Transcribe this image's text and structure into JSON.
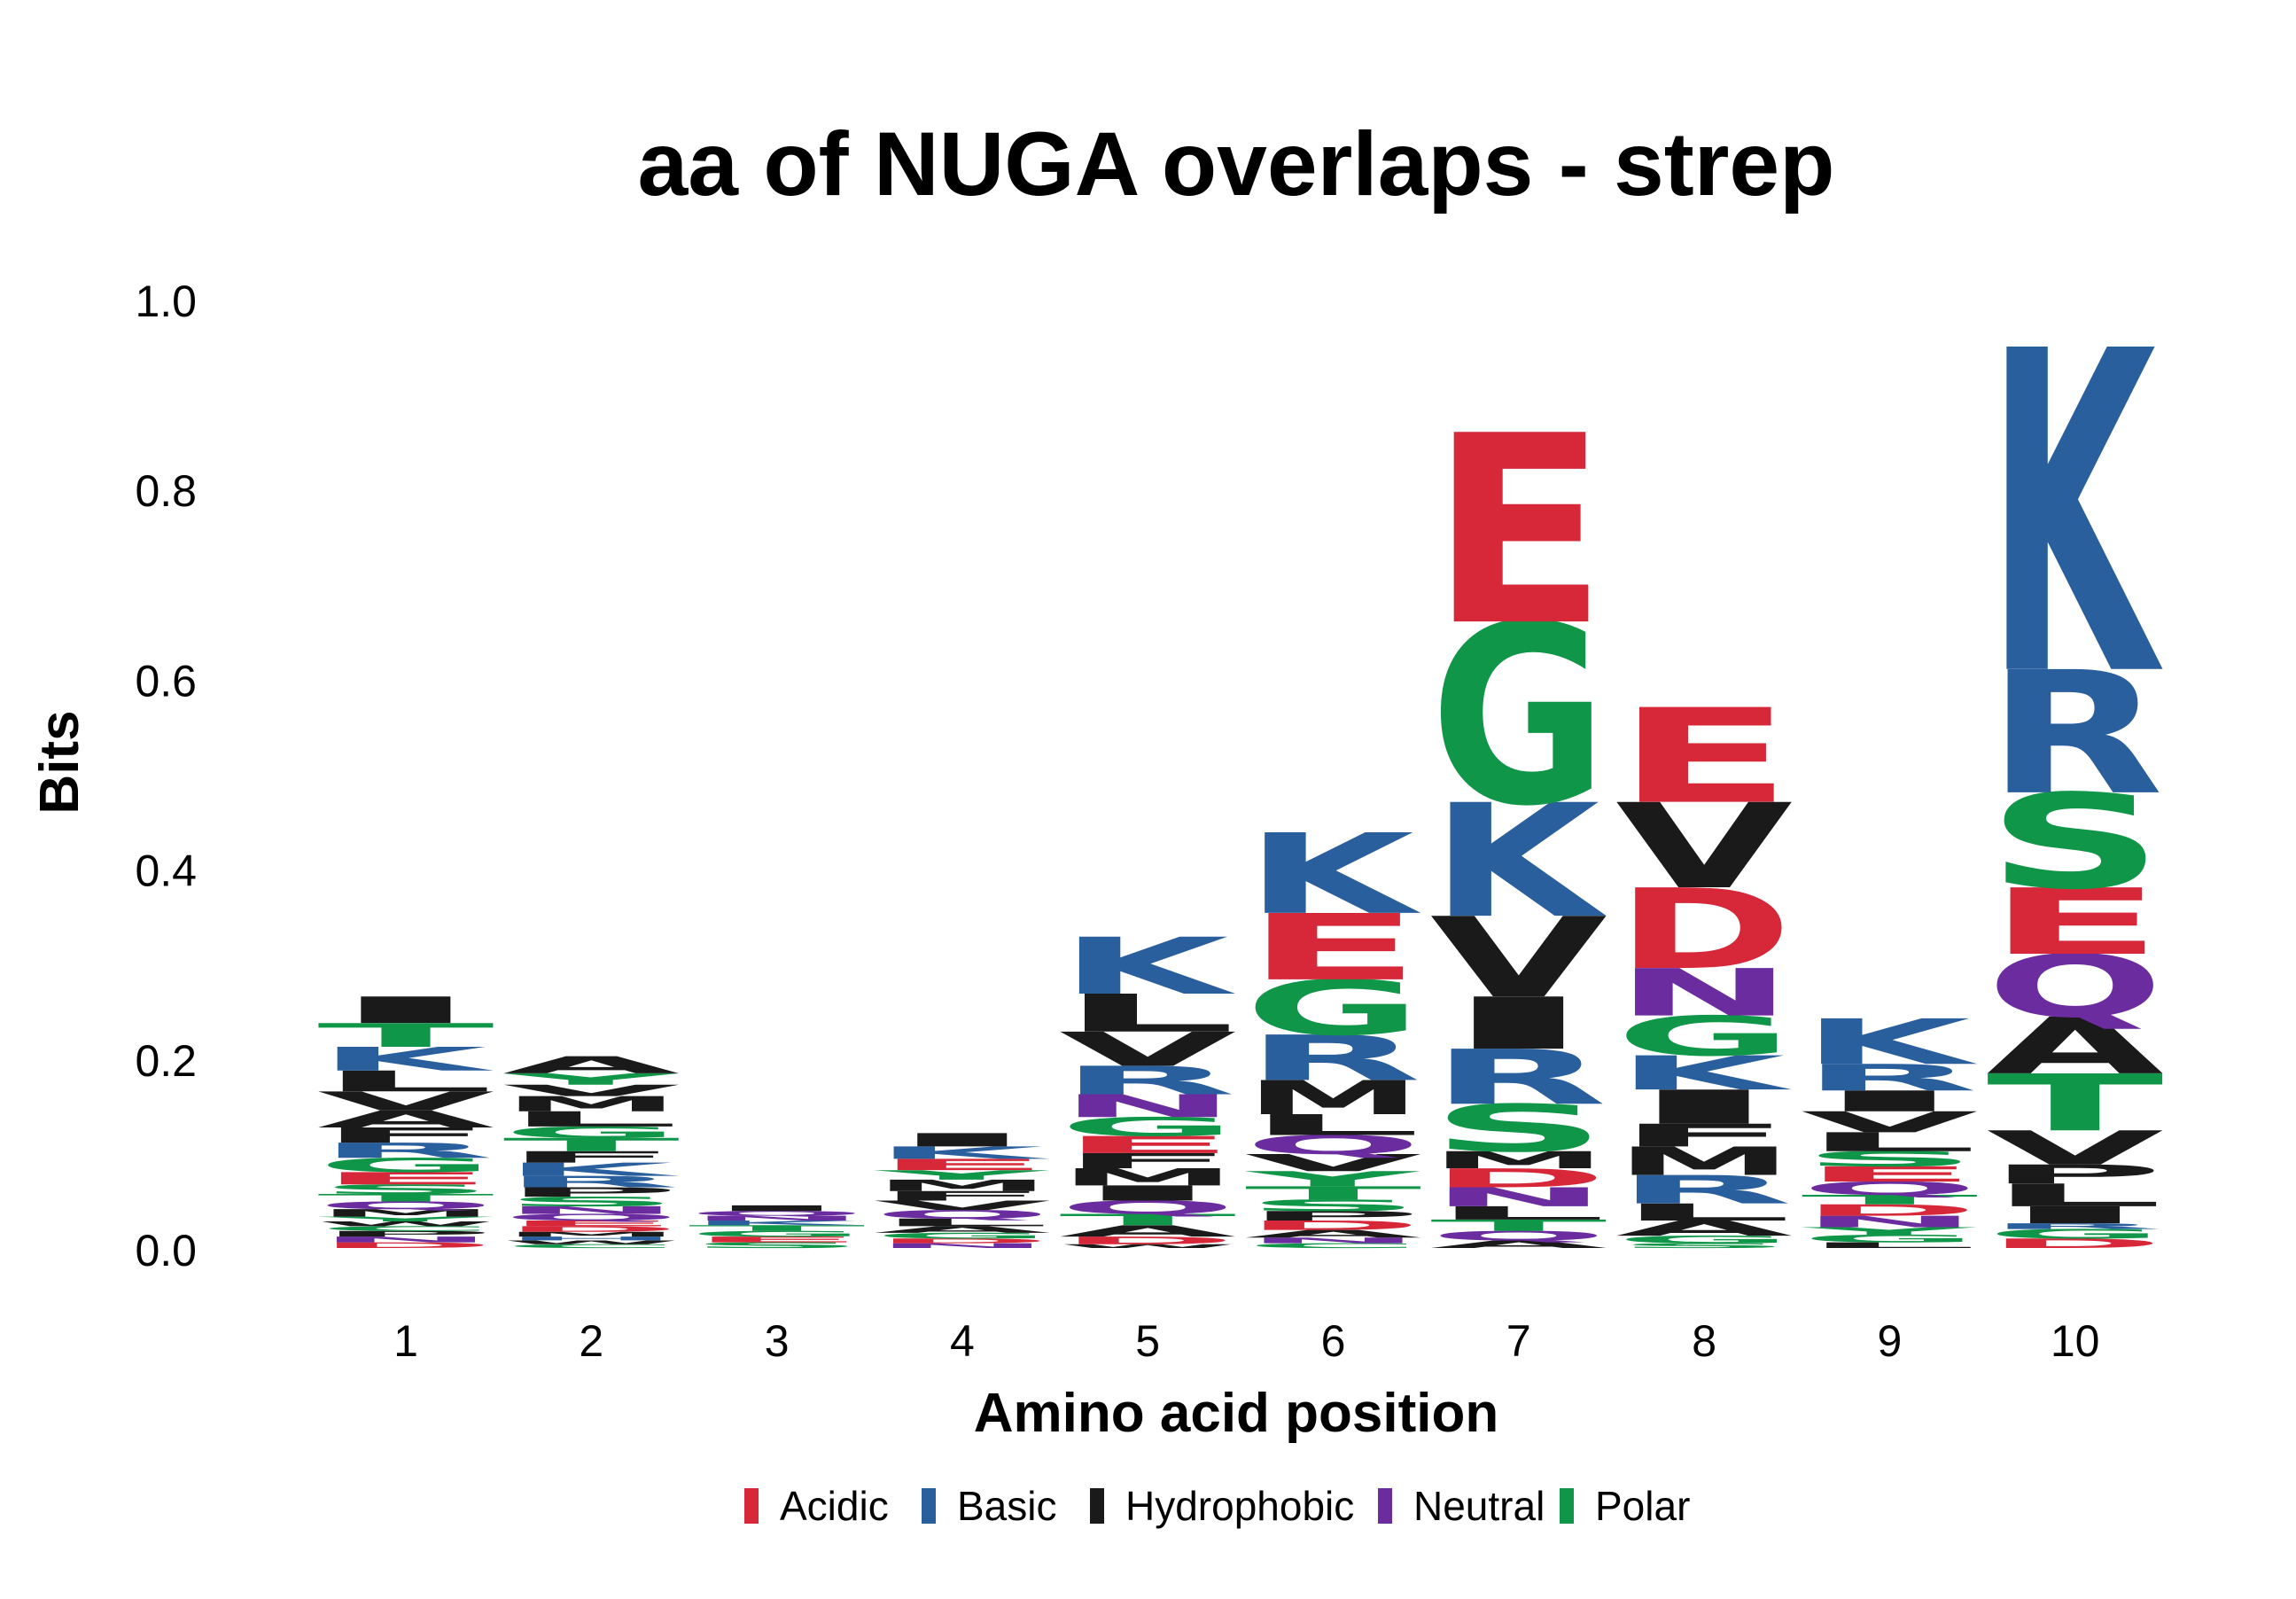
{
  "chart_data": {
    "type": "sequence-logo",
    "title": "aa of NUGA overlaps - strep",
    "xlabel": "Amino acid position",
    "ylabel": "Bits",
    "ylim": [
      0,
      1.0
    ],
    "yticks": [
      "0.0",
      "0.2",
      "0.4",
      "0.6",
      "0.8",
      "1.0"
    ],
    "ytick_values": [
      0,
      0.2,
      0.4,
      0.6,
      0.8,
      1.0
    ],
    "categories": [
      "1",
      "2",
      "3",
      "4",
      "5",
      "6",
      "7",
      "8",
      "9",
      "10"
    ],
    "grid": false,
    "legend_position": "bottom",
    "legend": [
      {
        "name": "Acidic",
        "color": "#D62839"
      },
      {
        "name": "Basic",
        "color": "#2A5F9E"
      },
      {
        "name": "Hydrophobic",
        "color": "#1A1A1A"
      },
      {
        "name": "Neutral",
        "color": "#6A2C9E"
      },
      {
        "name": "Polar",
        "color": "#109648"
      }
    ],
    "positions": [
      {
        "position": "1",
        "letters": [
          {
            "aa": "D",
            "group": "Acidic",
            "bits": 0.006
          },
          {
            "aa": "N",
            "group": "Neutral",
            "bits": 0.006
          },
          {
            "aa": "P",
            "group": "Hydrophobic",
            "bits": 0.006
          },
          {
            "aa": "C",
            "group": "Polar",
            "bits": 0.005
          },
          {
            "aa": "W",
            "group": "Hydrophobic",
            "bits": 0.005
          },
          {
            "aa": "Y",
            "group": "Polar",
            "bits": 0.005
          },
          {
            "aa": "M",
            "group": "Hydrophobic",
            "bits": 0.008
          },
          {
            "aa": "Q",
            "group": "Neutral",
            "bits": 0.008
          },
          {
            "aa": "T",
            "group": "Polar",
            "bits": 0.008
          },
          {
            "aa": "S",
            "group": "Polar",
            "bits": 0.01
          },
          {
            "aa": "E",
            "group": "Acidic",
            "bits": 0.013
          },
          {
            "aa": "G",
            "group": "Polar",
            "bits": 0.015
          },
          {
            "aa": "R",
            "group": "Basic",
            "bits": 0.016
          },
          {
            "aa": "F",
            "group": "Hydrophobic",
            "bits": 0.016
          },
          {
            "aa": "A",
            "group": "Hydrophobic",
            "bits": 0.018
          },
          {
            "aa": "V",
            "group": "Hydrophobic",
            "bits": 0.02
          },
          {
            "aa": "L",
            "group": "Hydrophobic",
            "bits": 0.022
          },
          {
            "aa": "K",
            "group": "Basic",
            "bits": 0.025
          },
          {
            "aa": "T",
            "group": "Polar",
            "bits": 0.025
          },
          {
            "aa": "I",
            "group": "Hydrophobic",
            "bits": 0.028
          }
        ]
      },
      {
        "position": "2",
        "letters": [
          {
            "aa": "C",
            "group": "Polar",
            "bits": 0.004
          },
          {
            "aa": "W",
            "group": "Hydrophobic",
            "bits": 0.004
          },
          {
            "aa": "H",
            "group": "Basic",
            "bits": 0.004
          },
          {
            "aa": "M",
            "group": "Hydrophobic",
            "bits": 0.005
          },
          {
            "aa": "D",
            "group": "Acidic",
            "bits": 0.006
          },
          {
            "aa": "E",
            "group": "Acidic",
            "bits": 0.006
          },
          {
            "aa": "Q",
            "group": "Neutral",
            "bits": 0.007
          },
          {
            "aa": "N",
            "group": "Neutral",
            "bits": 0.008
          },
          {
            "aa": "S",
            "group": "Polar",
            "bits": 0.01
          },
          {
            "aa": "P",
            "group": "Hydrophobic",
            "bits": 0.01
          },
          {
            "aa": "R",
            "group": "Basic",
            "bits": 0.012
          },
          {
            "aa": "K",
            "group": "Basic",
            "bits": 0.014
          },
          {
            "aa": "F",
            "group": "Hydrophobic",
            "bits": 0.012
          },
          {
            "aa": "T",
            "group": "Polar",
            "bits": 0.014
          },
          {
            "aa": "G",
            "group": "Polar",
            "bits": 0.012
          },
          {
            "aa": "L",
            "group": "Hydrophobic",
            "bits": 0.016
          },
          {
            "aa": "M",
            "group": "Hydrophobic",
            "bits": 0.016
          },
          {
            "aa": "V",
            "group": "Hydrophobic",
            "bits": 0.012
          },
          {
            "aa": "Y",
            "group": "Polar",
            "bits": 0.012
          },
          {
            "aa": "A",
            "group": "Hydrophobic",
            "bits": 0.018
          }
        ]
      },
      {
        "position": "3",
        "letters": [
          {
            "aa": "S",
            "group": "Polar",
            "bits": 0.006
          },
          {
            "aa": "E",
            "group": "Acidic",
            "bits": 0.006
          },
          {
            "aa": "G",
            "group": "Polar",
            "bits": 0.006
          },
          {
            "aa": "T",
            "group": "Polar",
            "bits": 0.006
          },
          {
            "aa": "K",
            "group": "Basic",
            "bits": 0.005
          },
          {
            "aa": "N",
            "group": "Neutral",
            "bits": 0.005
          },
          {
            "aa": "Q",
            "group": "Neutral",
            "bits": 0.005
          },
          {
            "aa": "I",
            "group": "Hydrophobic",
            "bits": 0.006
          }
        ]
      },
      {
        "position": "4",
        "letters": [
          {
            "aa": "N",
            "group": "Neutral",
            "bits": 0.005
          },
          {
            "aa": "D",
            "group": "Acidic",
            "bits": 0.005
          },
          {
            "aa": "G",
            "group": "Polar",
            "bits": 0.006
          },
          {
            "aa": "A",
            "group": "Hydrophobic",
            "bits": 0.007
          },
          {
            "aa": "L",
            "group": "Hydrophobic",
            "bits": 0.008
          },
          {
            "aa": "Q",
            "group": "Neutral",
            "bits": 0.009
          },
          {
            "aa": "V",
            "group": "Hydrophobic",
            "bits": 0.01
          },
          {
            "aa": "F",
            "group": "Hydrophobic",
            "bits": 0.01
          },
          {
            "aa": "M",
            "group": "Hydrophobic",
            "bits": 0.012
          },
          {
            "aa": "Y",
            "group": "Polar",
            "bits": 0.01
          },
          {
            "aa": "E",
            "group": "Acidic",
            "bits": 0.012
          },
          {
            "aa": "K",
            "group": "Basic",
            "bits": 0.013
          },
          {
            "aa": "I",
            "group": "Hydrophobic",
            "bits": 0.014
          }
        ]
      },
      {
        "position": "5",
        "letters": [
          {
            "aa": "W",
            "group": "Hydrophobic",
            "bits": 0.004
          },
          {
            "aa": "D",
            "group": "Acidic",
            "bits": 0.008
          },
          {
            "aa": "A",
            "group": "Hydrophobic",
            "bits": 0.012
          },
          {
            "aa": "T",
            "group": "Polar",
            "bits": 0.012
          },
          {
            "aa": "Q",
            "group": "Neutral",
            "bits": 0.014
          },
          {
            "aa": "I",
            "group": "Hydrophobic",
            "bits": 0.016
          },
          {
            "aa": "M",
            "group": "Hydrophobic",
            "bits": 0.018
          },
          {
            "aa": "F",
            "group": "Hydrophobic",
            "bits": 0.016
          },
          {
            "aa": "E",
            "group": "Acidic",
            "bits": 0.018
          },
          {
            "aa": "G",
            "group": "Polar",
            "bits": 0.02
          },
          {
            "aa": "N",
            "group": "Neutral",
            "bits": 0.024
          },
          {
            "aa": "R",
            "group": "Basic",
            "bits": 0.03
          },
          {
            "aa": "V",
            "group": "Hydrophobic",
            "bits": 0.036
          },
          {
            "aa": "L",
            "group": "Hydrophobic",
            "bits": 0.04
          },
          {
            "aa": "K",
            "group": "Basic",
            "bits": 0.06
          }
        ]
      },
      {
        "position": "6",
        "letters": [
          {
            "aa": "C",
            "group": "Polar",
            "bits": 0.005
          },
          {
            "aa": "N",
            "group": "Neutral",
            "bits": 0.006
          },
          {
            "aa": "A",
            "group": "Hydrophobic",
            "bits": 0.008
          },
          {
            "aa": "D",
            "group": "Acidic",
            "bits": 0.01
          },
          {
            "aa": "P",
            "group": "Hydrophobic",
            "bits": 0.01
          },
          {
            "aa": "S",
            "group": "Polar",
            "bits": 0.012
          },
          {
            "aa": "T",
            "group": "Polar",
            "bits": 0.014
          },
          {
            "aa": "Y",
            "group": "Polar",
            "bits": 0.016
          },
          {
            "aa": "V",
            "group": "Hydrophobic",
            "bits": 0.018
          },
          {
            "aa": "Q",
            "group": "Neutral",
            "bits": 0.02
          },
          {
            "aa": "L",
            "group": "Hydrophobic",
            "bits": 0.022
          },
          {
            "aa": "M",
            "group": "Hydrophobic",
            "bits": 0.036
          },
          {
            "aa": "R",
            "group": "Basic",
            "bits": 0.048
          },
          {
            "aa": "G",
            "group": "Polar",
            "bits": 0.058
          },
          {
            "aa": "E",
            "group": "Acidic",
            "bits": 0.07
          },
          {
            "aa": "K",
            "group": "Basic",
            "bits": 0.085
          }
        ]
      },
      {
        "position": "7",
        "letters": [
          {
            "aa": "A",
            "group": "Hydrophobic",
            "bits": 0.008
          },
          {
            "aa": "Q",
            "group": "Neutral",
            "bits": 0.01
          },
          {
            "aa": "T",
            "group": "Polar",
            "bits": 0.012
          },
          {
            "aa": "L",
            "group": "Hydrophobic",
            "bits": 0.014
          },
          {
            "aa": "N",
            "group": "Neutral",
            "bits": 0.02
          },
          {
            "aa": "D",
            "group": "Acidic",
            "bits": 0.02
          },
          {
            "aa": "M",
            "group": "Hydrophobic",
            "bits": 0.018
          },
          {
            "aa": "S",
            "group": "Polar",
            "bits": 0.05
          },
          {
            "aa": "R",
            "group": "Basic",
            "bits": 0.058
          },
          {
            "aa": "I",
            "group": "Hydrophobic",
            "bits": 0.055
          },
          {
            "aa": "V",
            "group": "Hydrophobic",
            "bits": 0.085
          },
          {
            "aa": "K",
            "group": "Basic",
            "bits": 0.12
          },
          {
            "aa": "G",
            "group": "Polar",
            "bits": 0.19
          },
          {
            "aa": "E",
            "group": "Acidic",
            "bits": 0.2
          }
        ]
      },
      {
        "position": "8",
        "letters": [
          {
            "aa": "S",
            "group": "Polar",
            "bits": 0.005
          },
          {
            "aa": "G",
            "group": "Polar",
            "bits": 0.008
          },
          {
            "aa": "A",
            "group": "Hydrophobic",
            "bits": 0.016
          },
          {
            "aa": "L",
            "group": "Hydrophobic",
            "bits": 0.018
          },
          {
            "aa": "R",
            "group": "Basic",
            "bits": 0.03
          },
          {
            "aa": "M",
            "group": "Hydrophobic",
            "bits": 0.03
          },
          {
            "aa": "F",
            "group": "Hydrophobic",
            "bits": 0.024
          },
          {
            "aa": "I",
            "group": "Hydrophobic",
            "bits": 0.036
          },
          {
            "aa": "K",
            "group": "Basic",
            "bits": 0.036
          },
          {
            "aa": "G",
            "group": "Polar",
            "bits": 0.042
          },
          {
            "aa": "N",
            "group": "Neutral",
            "bits": 0.05
          },
          {
            "aa": "D",
            "group": "Acidic",
            "bits": 0.085
          },
          {
            "aa": "V",
            "group": "Hydrophobic",
            "bits": 0.09
          },
          {
            "aa": "E",
            "group": "Acidic",
            "bits": 0.1
          }
        ]
      },
      {
        "position": "9",
        "letters": [
          {
            "aa": "L",
            "group": "Hydrophobic",
            "bits": 0.006
          },
          {
            "aa": "G",
            "group": "Polar",
            "bits": 0.008
          },
          {
            "aa": "Y",
            "group": "Polar",
            "bits": 0.008
          },
          {
            "aa": "N",
            "group": "Neutral",
            "bits": 0.012
          },
          {
            "aa": "D",
            "group": "Acidic",
            "bits": 0.012
          },
          {
            "aa": "T",
            "group": "Polar",
            "bits": 0.01
          },
          {
            "aa": "Q",
            "group": "Neutral",
            "bits": 0.014
          },
          {
            "aa": "E",
            "group": "Acidic",
            "bits": 0.016
          },
          {
            "aa": "S",
            "group": "Polar",
            "bits": 0.016
          },
          {
            "aa": "L",
            "group": "Hydrophobic",
            "bits": 0.02
          },
          {
            "aa": "V",
            "group": "Hydrophobic",
            "bits": 0.022
          },
          {
            "aa": "I",
            "group": "Hydrophobic",
            "bits": 0.022
          },
          {
            "aa": "R",
            "group": "Basic",
            "bits": 0.028
          },
          {
            "aa": "K",
            "group": "Basic",
            "bits": 0.048
          }
        ]
      },
      {
        "position": "10",
        "letters": [
          {
            "aa": "D",
            "group": "Acidic",
            "bits": 0.01
          },
          {
            "aa": "G",
            "group": "Polar",
            "bits": 0.01
          },
          {
            "aa": "R",
            "group": "Basic",
            "bits": 0.006
          },
          {
            "aa": "I",
            "group": "Hydrophobic",
            "bits": 0.018
          },
          {
            "aa": "L",
            "group": "Hydrophobic",
            "bits": 0.024
          },
          {
            "aa": "P",
            "group": "Hydrophobic",
            "bits": 0.02
          },
          {
            "aa": "V",
            "group": "Hydrophobic",
            "bits": 0.036
          },
          {
            "aa": "T",
            "group": "Polar",
            "bits": 0.06
          },
          {
            "aa": "A",
            "group": "Hydrophobic",
            "bits": 0.06
          },
          {
            "aa": "Q",
            "group": "Neutral",
            "bits": 0.066
          },
          {
            "aa": "E",
            "group": "Acidic",
            "bits": 0.07
          },
          {
            "aa": "S",
            "group": "Polar",
            "bits": 0.1
          },
          {
            "aa": "R",
            "group": "Basic",
            "bits": 0.13
          },
          {
            "aa": "K",
            "group": "Basic",
            "bits": 0.34
          }
        ]
      }
    ]
  }
}
